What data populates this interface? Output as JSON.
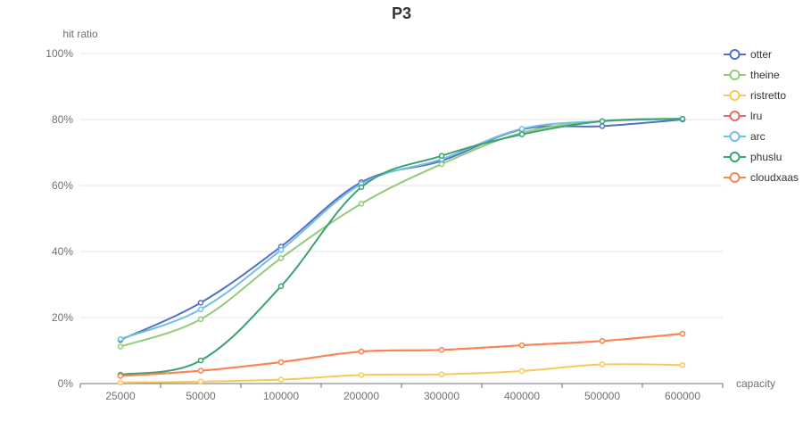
{
  "chart_data": {
    "type": "line",
    "title": "P3",
    "xlabel": "capacity",
    "ylabel": "hit ratio",
    "categories": [
      "25000",
      "50000",
      "100000",
      "200000",
      "300000",
      "400000",
      "500000",
      "600000"
    ],
    "ylim": [
      0,
      100
    ],
    "yticks": [
      0,
      20,
      40,
      60,
      80,
      100
    ],
    "ytick_labels": [
      "0%",
      "20%",
      "40%",
      "60%",
      "80%",
      "100%"
    ],
    "grid": true,
    "legend_position": "right",
    "series": [
      {
        "name": "otter",
        "color": "#5470c6",
        "values": [
          13.2,
          24.5,
          41.5,
          61.0,
          67.5,
          77.0,
          78.0,
          80.0
        ]
      },
      {
        "name": "theine",
        "color": "#91cc75",
        "values": [
          11.2,
          19.5,
          38.0,
          54.5,
          66.5,
          76.0,
          79.5,
          80.3
        ]
      },
      {
        "name": "ristretto",
        "color": "#fac858",
        "values": [
          0.3,
          0.6,
          1.2,
          2.6,
          2.8,
          3.8,
          5.8,
          5.6
        ]
      },
      {
        "name": "lru",
        "color": "#ee6666",
        "values": [
          2.3,
          3.9,
          6.5,
          9.7,
          10.2,
          11.6,
          12.9,
          15.1
        ]
      },
      {
        "name": "arc",
        "color": "#73c0de",
        "values": [
          13.5,
          22.5,
          40.5,
          60.5,
          68.0,
          77.2,
          79.5,
          80.2
        ]
      },
      {
        "name": "phuslu",
        "color": "#3ba272",
        "values": [
          2.7,
          7.0,
          29.5,
          59.5,
          69.0,
          75.5,
          79.5,
          80.2
        ]
      },
      {
        "name": "cloudxaas",
        "color": "#fc8452",
        "values": [
          2.3,
          3.9,
          6.5,
          9.7,
          10.2,
          11.6,
          12.9,
          15.1
        ]
      }
    ]
  }
}
